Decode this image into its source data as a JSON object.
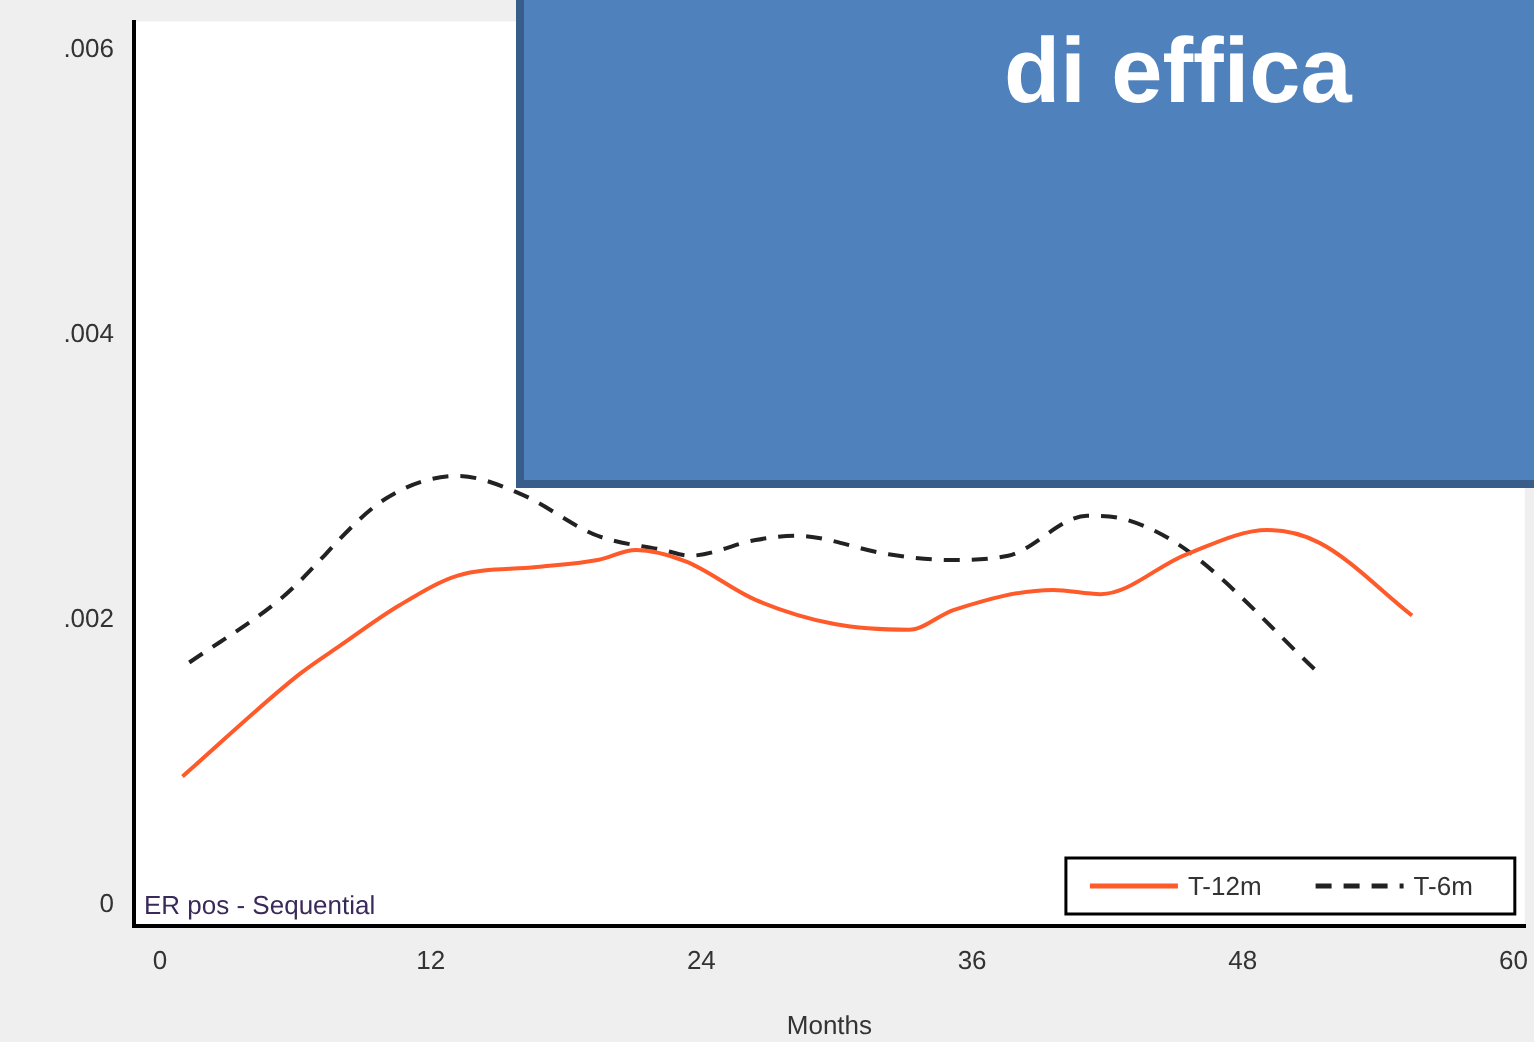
{
  "chart_data": {
    "type": "line",
    "xlabel": "Months",
    "annotations": [
      "ER pos - Sequential",
      "di effica"
    ],
    "series": [
      {
        "name": "T-12m",
        "color": "#ff5a2a",
        "line_style": "solid",
        "x": [
          1,
          6.2,
          8,
          10.6,
          13.2,
          16.7,
          19.4,
          21.1,
          23.3,
          26.4,
          29.9,
          33.2,
          35.2,
          39.6,
          41.7,
          45.5,
          49.1,
          51.4,
          55.5
        ],
        "values": [
          0.0009,
          0.00162,
          0.00182,
          0.0021,
          0.00231,
          0.00237,
          0.00242,
          0.00249,
          0.00241,
          0.00214,
          0.00197,
          0.00193,
          0.00207,
          0.00221,
          0.00218,
          0.00246,
          0.00263,
          0.00254,
          0.00203
        ]
      },
      {
        "name": "T-6m",
        "color": "#222222",
        "line_style": "dashed",
        "x": [
          1.3,
          5.3,
          10,
          13.2,
          15.9,
          19.4,
          22.3,
          23.5,
          26.4,
          28.2,
          32.3,
          35,
          37.6,
          41.1,
          42.9,
          45.5,
          51.4
        ],
        "values": [
          0.0017,
          0.00214,
          0.00285,
          0.00301,
          0.00289,
          0.00259,
          0.00249,
          0.00245,
          0.00256,
          0.00259,
          0.00246,
          0.00242,
          0.00245,
          0.00273,
          0.0027,
          0.00249,
          0.00162
        ]
      }
    ],
    "xlim": [
      -1.15,
      60.5
    ],
    "xticks": [
      0,
      12,
      24,
      36,
      48,
      60
    ],
    "ylim": [
      -0.00015,
      0.0062
    ],
    "yticks": [
      0,
      {
        "value": 0.002,
        "label": ".002"
      },
      {
        "value": 0.004,
        "label": ".004"
      },
      {
        "value": 0.006,
        "label": ".006"
      }
    ],
    "grid": false,
    "legend": "bottom right",
    "marker": "none"
  }
}
